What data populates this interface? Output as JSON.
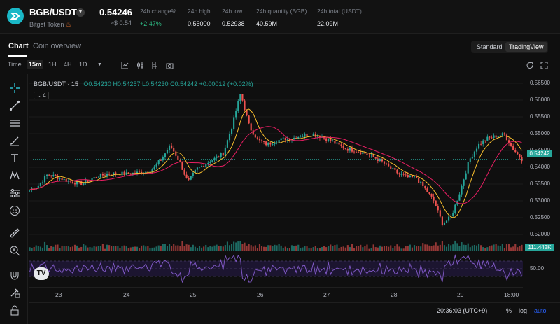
{
  "header": {
    "pair": "BGB/USDT",
    "token_name": "Bitget Token",
    "price": "0.54246",
    "price_usd": "≈$ 0.54",
    "stats": [
      {
        "label": "24h change%",
        "value": "+2.47%"
      },
      {
        "label": "24h high",
        "value": "0.55000"
      },
      {
        "label": "24h low",
        "value": "0.52938"
      },
      {
        "label": "24h quantity (BGB)",
        "value": "40.59M"
      },
      {
        "label": "24h total (USDT)",
        "value": "22.09M"
      }
    ]
  },
  "tabs": {
    "chart": "Chart",
    "overview": "Coin overview",
    "standard": "Standard",
    "tradingview": "TradingView"
  },
  "toolbar": {
    "time": "Time",
    "intervals": [
      "15m",
      "1H",
      "4H",
      "1D"
    ],
    "active_interval": "15m"
  },
  "legend": {
    "symbol": "BGB/USDT · 15",
    "o": "O0.54230",
    "h": "H0.54257",
    "l": "L0.54230",
    "c": "C0.54242",
    "change": "+0.00012 (+0.02%)",
    "indicator_count": "4"
  },
  "chart_data": {
    "type": "candlestick",
    "y_axis_ticks": [
      "0.56500",
      "0.56000",
      "0.55500",
      "0.55000",
      "0.54500",
      "0.54000",
      "0.53500",
      "0.53000",
      "0.52500",
      "0.52000"
    ],
    "ylim": [
      0.5175,
      0.5675
    ],
    "x_ticks": [
      "23",
      "24",
      "25",
      "26",
      "27",
      "28",
      "29",
      "18:00"
    ],
    "last_price": "0.54242",
    "volume_label": "111.442K",
    "rsi_level": "50.00",
    "close_path": [
      0.5333,
      0.5345,
      0.5378,
      0.5372,
      0.5362,
      0.5355,
      0.5352,
      0.5365,
      0.5375,
      0.538,
      0.5382,
      0.538,
      0.5383,
      0.5385,
      0.5395,
      0.5425,
      0.5465,
      0.542,
      0.5355,
      0.5395,
      0.541,
      0.5425,
      0.544,
      0.552,
      0.562,
      0.552,
      0.548,
      0.5468,
      0.5478,
      0.5485,
      0.5487,
      0.5495,
      0.5498,
      0.5493,
      0.5482,
      0.5468,
      0.5455,
      0.545,
      0.5443,
      0.5432,
      0.5418,
      0.5398,
      0.538,
      0.537,
      0.5368,
      0.5335,
      0.53,
      0.523,
      0.5255,
      0.533,
      0.542,
      0.5465,
      0.5485,
      0.5492,
      0.5498,
      0.5455,
      0.5424
    ]
  },
  "bottom": {
    "clock": "20:36:03 (UTC+9)",
    "percent": "%",
    "log": "log",
    "auto": "auto"
  },
  "colors": {
    "up": "#26a69a",
    "down": "#ef5350",
    "ma1": "#e91e63",
    "ma2": "#fbc02d",
    "rsi": "#7e57c2",
    "accent": "#2ebd85"
  }
}
